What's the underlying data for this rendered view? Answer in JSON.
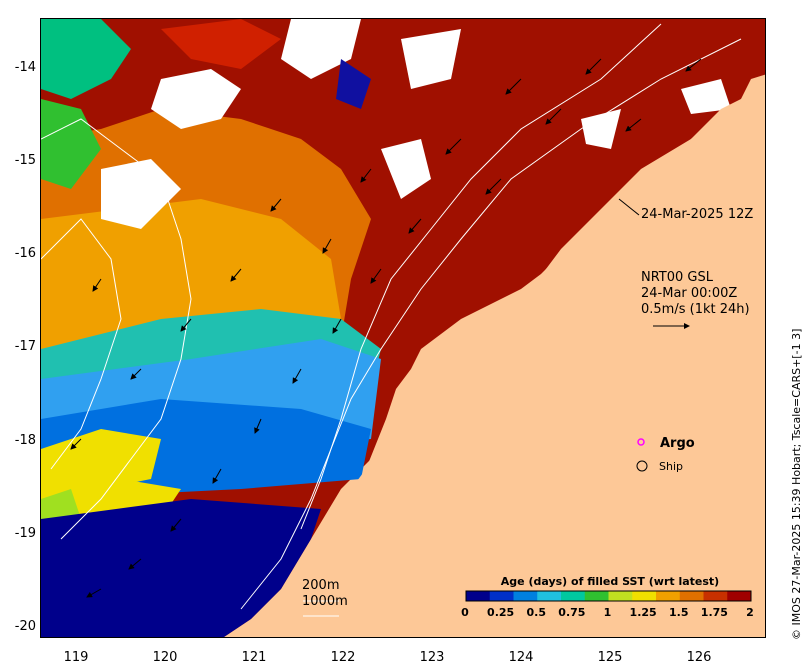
{
  "map": {
    "title_timestamp": "24-Mar-2025 12Z",
    "current_info": {
      "line1": "NRT00 GSL",
      "line2": "24-Mar 00:00Z",
      "line3": "0.5m/s (1kt 24h)"
    },
    "contours": {
      "c200": "200m",
      "c1000": "1000m"
    },
    "legend": {
      "argo": "Argo",
      "ship": "Ship"
    },
    "y_axis_labels": [
      "-14",
      "-15",
      "-16",
      "-17",
      "-18",
      "-19",
      "-20"
    ],
    "x_axis_labels": [
      "119",
      "120",
      "121",
      "122",
      "123",
      "124",
      "125",
      "126"
    ],
    "colorbar": {
      "title": "Age (days) of filled SST (wrt latest)",
      "ticks": [
        "0",
        "0.25",
        "0.5",
        "0.75",
        "1",
        "1.25",
        "1.5",
        "1.75",
        "2"
      ],
      "colors": [
        "#00008b",
        "#0030c8",
        "#0080e0",
        "#20c0e0",
        "#00c8a0",
        "#30c030",
        "#c0e020",
        "#f0e000",
        "#f0a000",
        "#e07000",
        "#c83000",
        "#a00000"
      ]
    },
    "credit": "© IMOS 27-Mar-2025 15:39 Hobart; Tscale=CARS+[-1 3]",
    "colors": {
      "land": "#fdc897",
      "frame": "#000000"
    }
  }
}
